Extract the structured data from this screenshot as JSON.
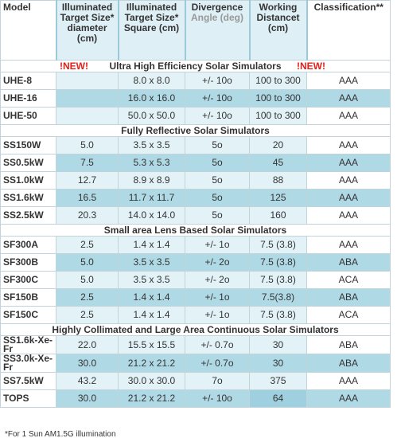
{
  "header": {
    "columns": [
      "Model",
      "Illuminated Target Size* diameter (cm)",
      "Illuminated Target Size* Square (cm)",
      "Divergence",
      "Working Distancet (cm)",
      "Classification**"
    ],
    "divergence_sub": "Angle (deg)"
  },
  "sections": [
    {
      "title": "Ultra High Efficiency Solar Simulators",
      "new_left": "!NEW!",
      "new_right": "!NEW!",
      "rows": [
        [
          "UHE-8",
          null,
          "8.0 x 8.0",
          "+/- 10o",
          "100 to 300",
          "AAA"
        ],
        [
          "UHE-16",
          null,
          "16.0 x 16.0",
          "+/- 10o",
          "100 to 300",
          "AAA"
        ],
        [
          "UHE-50",
          null,
          "50.0 x 50.0",
          "+/- 10o",
          "100 to 300",
          "AAA"
        ]
      ]
    },
    {
      "title": "Fully Reflective Solar Simulators",
      "rows": [
        [
          "SS150W",
          "5.0",
          "3.5 x 3.5",
          "5o",
          "20",
          "AAA"
        ],
        [
          "SS0.5kW",
          "7.5",
          "5.3 x 5.3",
          "5o",
          "45",
          "AAA"
        ],
        [
          "SS1.0kW",
          "12.7",
          "8.9 x 8.9",
          "5o",
          "88",
          "AAA"
        ],
        [
          "SS1.6kW",
          "16.5",
          "11.7 x 11.7",
          "5o",
          "125",
          "AAA"
        ],
        [
          "SS2.5kW",
          "20.3",
          "14.0 x 14.0",
          "5o",
          "160",
          "AAA"
        ]
      ]
    },
    {
      "title": "Small area Lens Based Solar Simulators",
      "rows": [
        [
          "SF300A",
          "2.5",
          "1.4 x 1.4",
          "+/- 1o",
          "7.5 (3.8)",
          "AAA"
        ],
        [
          "SF300B",
          "5.0",
          "3.5 x 3.5",
          "+/- 2o",
          "7.5 (3.8)",
          "ABA"
        ],
        [
          "SF300C",
          "5.0",
          "3.5 x 3.5",
          "+/- 2o",
          "7.5 (3.8)",
          "ACA"
        ],
        [
          "SF150B",
          "2.5",
          "1.4 x 1.4",
          "+/- 1o",
          "7.5(3.8)",
          "ABA"
        ],
        [
          "SF150C",
          "2.5",
          "1.4 x 1.4",
          "+/- 1o",
          "7.5 (3.8)",
          "ACA"
        ]
      ]
    },
    {
      "title": "Highly Collimated and Large Area Continuous Solar Simulators",
      "rows": [
        [
          "SS1.6k-Xe-Fr",
          "22.0",
          "15.5 x 15.5",
          "+/- 0.7o",
          "30",
          "ABA"
        ],
        [
          "SS3.0k-Xe-Fr",
          "30.0",
          "21.2 x 21.2",
          "+/- 0.7o",
          "30",
          "ABA"
        ],
        [
          "SS7.5kW",
          "43.2",
          "30.0 x 30.0",
          "7o",
          "375",
          "AAA"
        ],
        [
          "TOPS",
          "30.0",
          "21.2 x 21.2",
          "+/- 10o",
          "64",
          "AAA"
        ]
      ]
    }
  ],
  "footnote": "*For 1 Sun AM1.5G illumination"
}
